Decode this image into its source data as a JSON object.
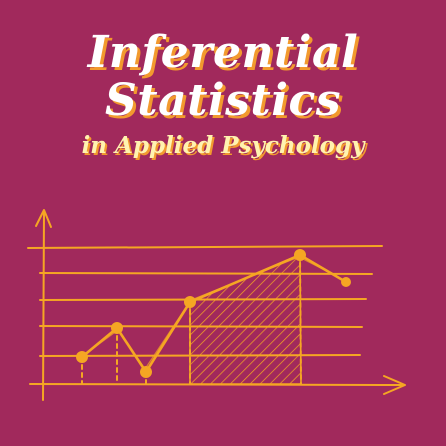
{
  "cover": {
    "title_line1": "Inferential",
    "title_line2": "Statistics",
    "subtitle": "in Applied Psychology"
  },
  "colors": {
    "background": "#a1295c",
    "title": "#ffffff",
    "title_shadow": "#f29a2e",
    "subtitle": "#fff3b0",
    "sketch": "#f5a623"
  },
  "illustration": {
    "kind": "hand-drawn line graph sketch with shaded area",
    "points": [
      {
        "x": 1,
        "y": 1
      },
      {
        "x": 2,
        "y": 2
      },
      {
        "x": 3,
        "y": 0.6
      },
      {
        "x": 4,
        "y": 3.4
      },
      {
        "x": 6.6,
        "y": 6
      },
      {
        "x": 7.6,
        "y": 5.2
      }
    ]
  }
}
